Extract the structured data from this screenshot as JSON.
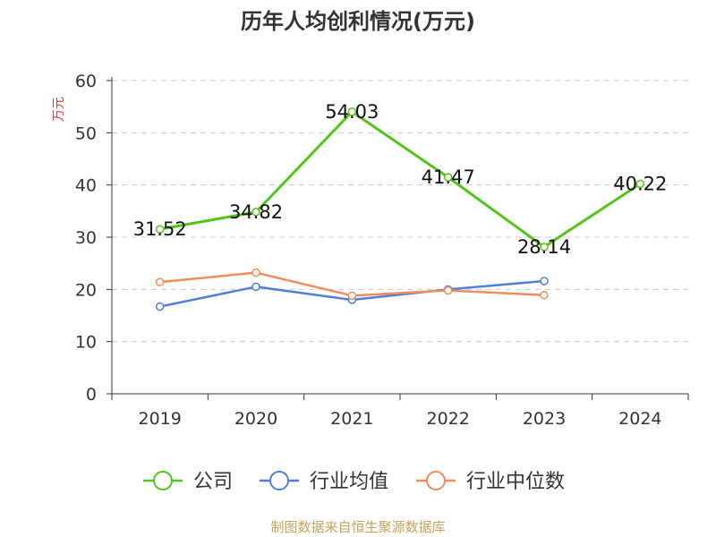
{
  "chart_data": {
    "type": "line",
    "title": "历年人均创利情况(万元)",
    "ylabel": "万元",
    "xlabel": "",
    "categories": [
      "2019",
      "2020",
      "2021",
      "2022",
      "2023",
      "2024"
    ],
    "ylim": [
      0,
      60
    ],
    "yticks": [
      "0",
      "10",
      "20",
      "30",
      "40",
      "50",
      "60"
    ],
    "grid": true,
    "legend_position": "bottom",
    "series": [
      {
        "name": "公司",
        "color": "#52c41a",
        "values": [
          31.52,
          34.82,
          54.03,
          41.47,
          28.14,
          40.22
        ],
        "labels": [
          "31.52",
          "34.82",
          "54.03",
          "41.47",
          "28.14",
          "40.22"
        ]
      },
      {
        "name": "行业均值",
        "color": "#4f7fdb",
        "values": [
          16.7,
          20.5,
          18.0,
          20.0,
          21.6,
          null
        ]
      },
      {
        "name": "行业中位数",
        "color": "#f28c5a",
        "values": [
          21.4,
          23.2,
          18.8,
          19.8,
          18.9,
          null
        ]
      }
    ],
    "source": "制图数据来自恒生聚源数据库"
  }
}
